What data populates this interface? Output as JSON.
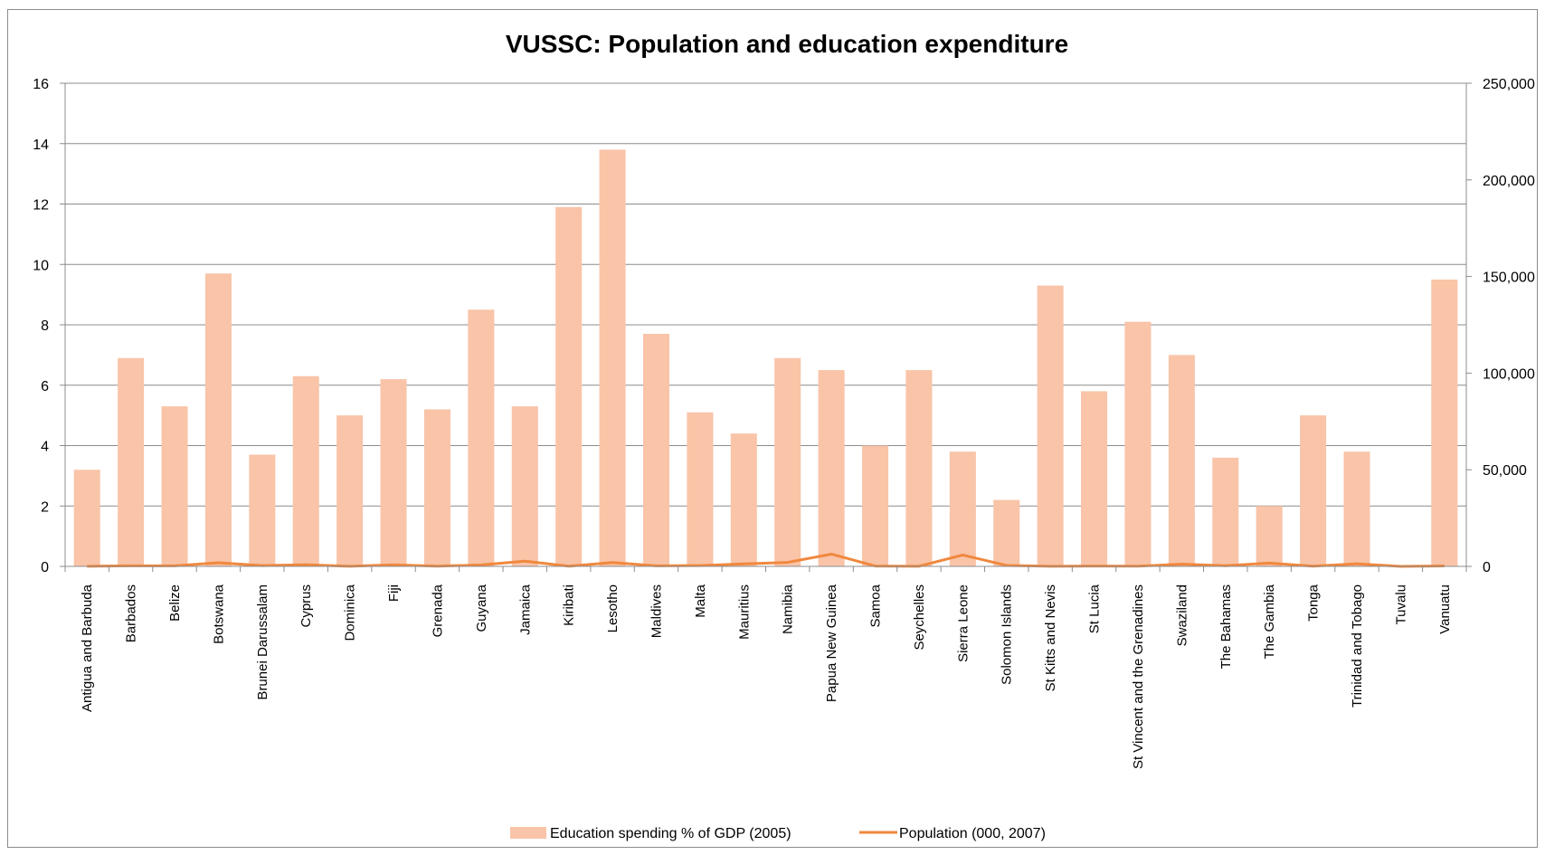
{
  "chart_data": {
    "type": "bar",
    "title": "VUSSC: Population and education expenditure",
    "categories": [
      "Antigua and Barbuda",
      "Barbados",
      "Belize",
      "Botswana",
      "Brunei Darussalam",
      "Cyprus",
      "Dominica",
      "Fiji",
      "Grenada",
      "Guyana",
      "Jamaica",
      "Kiribati",
      "Lesotho",
      "Maldives",
      "Malta",
      "Mauritius",
      "Namibia",
      "Papua New Guinea",
      "Samoa",
      "Seychelles",
      "Sierra Leone",
      "Solomon Islands",
      "St Kitts and Nevis",
      "St Lucia",
      "St Vincent and the Grenadines",
      "Swaziland",
      "The Bahamas",
      "The Gambia",
      "Tonga",
      "Trinidad and Tobago",
      "Tuvalu",
      "Vanuatu"
    ],
    "series": [
      {
        "name": "Education spending % of GDP (2005)",
        "type": "bar",
        "axis": "left",
        "color": "#f9c4a8",
        "values": [
          3.2,
          6.9,
          5.3,
          9.7,
          3.7,
          6.3,
          5.0,
          6.2,
          5.2,
          8.5,
          5.3,
          11.9,
          13.8,
          7.7,
          5.1,
          4.4,
          6.9,
          6.5,
          4.0,
          6.5,
          3.8,
          2.2,
          9.3,
          5.8,
          8.1,
          7.0,
          3.6,
          2.0,
          5.0,
          3.8,
          0,
          9.5
        ]
      },
      {
        "name": "Population (000, 2007)",
        "type": "line",
        "axis": "right",
        "color": "#f0883e",
        "values": [
          85,
          280,
          290,
          1880,
          390,
          855,
          70,
          840,
          106,
          740,
          2680,
          95,
          1995,
          305,
          408,
          1260,
          2075,
          6330,
          185,
          87,
          5870,
          496,
          50,
          165,
          120,
          1145,
          330,
          1705,
          102,
          1335,
          10,
          215
        ]
      }
    ],
    "y_left": {
      "min": 0,
      "max": 16,
      "ticks": [
        "0",
        "2",
        "4",
        "6",
        "8",
        "10",
        "12",
        "14",
        "16"
      ]
    },
    "y_right": {
      "min": 0,
      "max": 250000,
      "ticks": [
        "0",
        "50,000",
        "100,000",
        "150,000",
        "200,000",
        "250,000"
      ]
    },
    "grid": true,
    "legend_position": "bottom"
  }
}
